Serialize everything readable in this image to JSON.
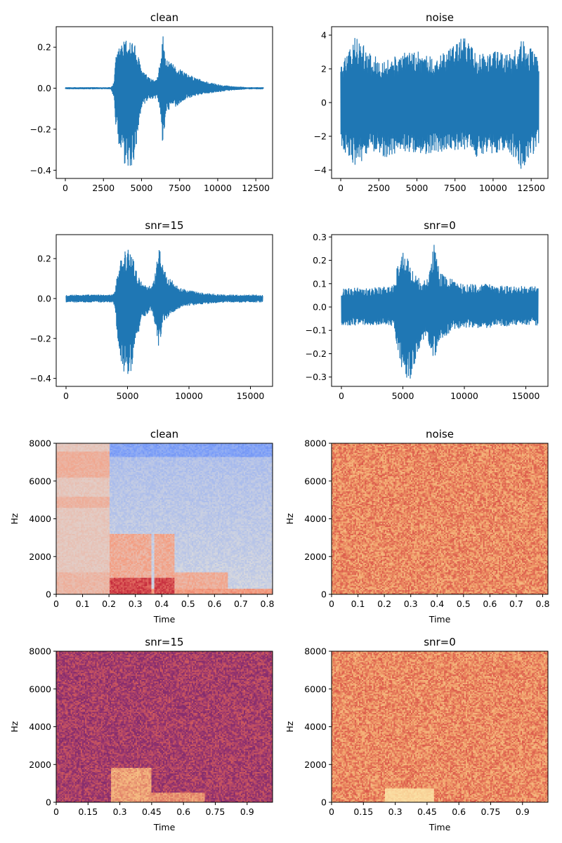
{
  "chart_data": [
    {
      "type": "line",
      "title": "clean",
      "color": "#1f77b4",
      "xlim": [
        -600,
        13600
      ],
      "ylim": [
        -0.44,
        0.3
      ],
      "xticks": [
        0,
        2500,
        5000,
        7500,
        10000,
        12500
      ],
      "yticks": [
        -0.4,
        -0.2,
        0.0,
        0.2
      ],
      "ytick_labels": [
        "−0.4",
        "−0.2",
        "0.0",
        "0.2"
      ],
      "envelope": {
        "x": [
          0,
          3000,
          3200,
          3300,
          3600,
          4000,
          4200,
          4500,
          4700,
          5000,
          5500,
          6000,
          6200,
          6400,
          6500,
          6600,
          7000,
          7500,
          8000,
          9000,
          10000,
          11000,
          12000,
          13000
        ],
        "upper": [
          0.005,
          0.005,
          0.03,
          0.15,
          0.22,
          0.24,
          0.25,
          0.23,
          0.18,
          0.1,
          0.05,
          0.04,
          0.12,
          0.27,
          0.2,
          0.14,
          0.12,
          0.1,
          0.07,
          0.04,
          0.02,
          0.01,
          0.005,
          0.005
        ],
        "lower": [
          -0.005,
          -0.005,
          -0.05,
          -0.2,
          -0.35,
          -0.4,
          -0.41,
          -0.38,
          -0.25,
          -0.1,
          -0.06,
          -0.05,
          -0.1,
          -0.29,
          -0.2,
          -0.13,
          -0.1,
          -0.08,
          -0.05,
          -0.03,
          -0.02,
          -0.01,
          -0.005,
          -0.005
        ]
      }
    },
    {
      "type": "line",
      "title": "noise",
      "color": "#1f77b4",
      "xlim": [
        -600,
        13600
      ],
      "ylim": [
        -4.5,
        4.5
      ],
      "xticks": [
        0,
        2500,
        5000,
        7500,
        10000,
        12500
      ],
      "yticks": [
        -4,
        -2,
        0,
        2,
        4
      ],
      "ytick_labels": [
        "−4",
        "−2",
        "0",
        "2",
        "4"
      ],
      "envelope": {
        "x": [
          0,
          1000,
          2000,
          3000,
          4000,
          5000,
          6000,
          7000,
          8000,
          9000,
          10000,
          11000,
          12000,
          13000
        ],
        "upper": [
          2.4,
          4.1,
          2.8,
          2.6,
          2.9,
          3.2,
          2.7,
          3.0,
          4.0,
          2.8,
          3.1,
          2.9,
          3.8,
          2.6
        ],
        "lower": [
          -2.6,
          -3.9,
          -2.9,
          -3.3,
          -2.8,
          -3.2,
          -3.0,
          -3.1,
          -2.7,
          -3.3,
          -3.0,
          -2.9,
          -4.2,
          -2.6
        ]
      }
    },
    {
      "type": "line",
      "title": "snr=15",
      "color": "#1f77b4",
      "xlim": [
        -800,
        16800
      ],
      "ylim": [
        -0.44,
        0.32
      ],
      "xticks": [
        0,
        5000,
        10000,
        15000
      ],
      "yticks": [
        -0.4,
        -0.2,
        0.0,
        0.2
      ],
      "ytick_labels": [
        "−0.4",
        "−0.2",
        "0.0",
        "0.2"
      ],
      "envelope": {
        "x": [
          0,
          3800,
          4000,
          4200,
          4500,
          5000,
          5200,
          5500,
          5800,
          6200,
          7000,
          7300,
          7600,
          7900,
          8500,
          9500,
          11000,
          13000,
          16000
        ],
        "upper": [
          0.02,
          0.02,
          0.04,
          0.15,
          0.22,
          0.25,
          0.26,
          0.2,
          0.12,
          0.08,
          0.06,
          0.15,
          0.29,
          0.15,
          0.1,
          0.05,
          0.03,
          0.02,
          0.02
        ],
        "lower": [
          -0.02,
          -0.02,
          -0.05,
          -0.22,
          -0.35,
          -0.4,
          -0.41,
          -0.35,
          -0.2,
          -0.1,
          -0.06,
          -0.15,
          -0.27,
          -0.12,
          -0.08,
          -0.04,
          -0.03,
          -0.02,
          -0.02
        ]
      }
    },
    {
      "type": "line",
      "title": "snr=0",
      "color": "#1f77b4",
      "xlim": [
        -800,
        16800
      ],
      "ylim": [
        -0.34,
        0.31
      ],
      "xticks": [
        0,
        5000,
        10000,
        15000
      ],
      "yticks": [
        -0.3,
        -0.2,
        -0.1,
        0.0,
        0.1,
        0.2,
        0.3
      ],
      "ytick_labels": [
        "−0.3",
        "−0.2",
        "−0.1",
        "0.0",
        "0.1",
        "0.2",
        "0.3"
      ],
      "envelope": {
        "x": [
          0,
          4000,
          4300,
          4600,
          5000,
          5300,
          5600,
          6000,
          6500,
          7000,
          7300,
          7600,
          8000,
          9000,
          10000,
          12000,
          14000,
          16000
        ],
        "upper": [
          0.08,
          0.09,
          0.1,
          0.2,
          0.24,
          0.22,
          0.18,
          0.15,
          0.12,
          0.12,
          0.2,
          0.29,
          0.15,
          0.12,
          0.1,
          0.1,
          0.09,
          0.09
        ],
        "lower": [
          -0.08,
          -0.08,
          -0.1,
          -0.2,
          -0.28,
          -0.31,
          -0.32,
          -0.25,
          -0.15,
          -0.13,
          -0.2,
          -0.22,
          -0.15,
          -0.1,
          -0.09,
          -0.09,
          -0.08,
          -0.08
        ]
      }
    },
    {
      "type": "heatmap",
      "title": "clean",
      "colormap": "coolwarm",
      "xlabel": "Time",
      "ylabel": "Hz",
      "xlim": [
        0,
        0.82
      ],
      "ylim": [
        0,
        8000
      ],
      "xticks": [
        0,
        0.1,
        0.2,
        0.3,
        0.4,
        0.5,
        0.6,
        0.7,
        0.8
      ],
      "xtick_labels": [
        "0",
        "0.1",
        "0.2",
        "0.3",
        "0.4",
        "0.5",
        "0.6",
        "0.7",
        "0.8"
      ],
      "yticks": [
        0,
        2000,
        4000,
        6000,
        8000
      ]
    },
    {
      "type": "heatmap",
      "title": "noise",
      "colormap": "warm",
      "xlabel": "Time",
      "ylabel": "Hz",
      "xlim": [
        0,
        0.82
      ],
      "ylim": [
        0,
        8000
      ],
      "xticks": [
        0,
        0.1,
        0.2,
        0.3,
        0.4,
        0.5,
        0.6,
        0.7,
        0.8
      ],
      "xtick_labels": [
        "0",
        "0.1",
        "0.2",
        "0.3",
        "0.4",
        "0.5",
        "0.6",
        "0.7",
        "0.8"
      ],
      "yticks": [
        0,
        2000,
        4000,
        6000,
        8000
      ]
    },
    {
      "type": "heatmap",
      "title": "snr=15",
      "colormap": "magma",
      "xlabel": "Time",
      "ylabel": "Hz",
      "xlim": [
        0,
        1.02
      ],
      "ylim": [
        0,
        8000
      ],
      "xticks": [
        0,
        0.15,
        0.3,
        0.45,
        0.6,
        0.75,
        0.9
      ],
      "xtick_labels": [
        "0",
        "0.15",
        "0.3",
        "0.45",
        "0.6",
        "0.75",
        "0.9"
      ],
      "yticks": [
        0,
        2000,
        4000,
        6000,
        8000
      ]
    },
    {
      "type": "heatmap",
      "title": "snr=0",
      "colormap": "warm",
      "xlabel": "Time",
      "ylabel": "Hz",
      "xlim": [
        0,
        1.02
      ],
      "ylim": [
        0,
        8000
      ],
      "xticks": [
        0,
        0.15,
        0.3,
        0.45,
        0.6,
        0.75,
        0.9
      ],
      "xtick_labels": [
        "0",
        "0.15",
        "0.3",
        "0.45",
        "0.6",
        "0.75",
        "0.9"
      ],
      "yticks": [
        0,
        2000,
        4000,
        6000,
        8000
      ]
    }
  ]
}
